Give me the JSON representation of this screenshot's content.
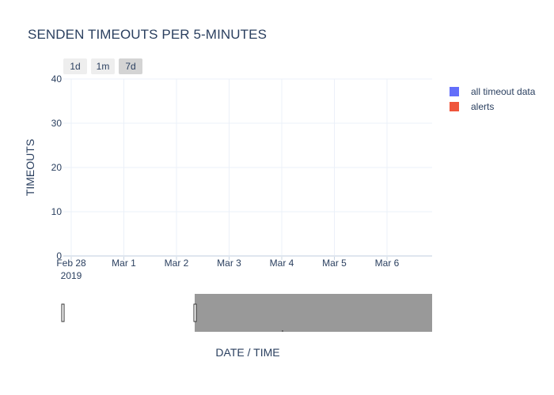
{
  "colors": {
    "series_1": "#636efa",
    "series_2": "#ef553b",
    "grid": "#ebf0f8",
    "range_fill": "#999999"
  },
  "range_buttons": [
    {
      "label": "1d",
      "active": false
    },
    {
      "label": "1m",
      "active": false
    },
    {
      "label": "7d",
      "active": true
    }
  ],
  "chart_data": {
    "type": "line",
    "title": "SENDEN TIMEOUTS PER 5-MINUTES",
    "xlabel": "DATE / TIME",
    "ylabel": "TIMEOUTS",
    "ylim": [
      0,
      40
    ],
    "y_ticks": [
      0,
      10,
      20,
      30,
      40
    ],
    "x_ticks": [
      {
        "label": "Feb 28",
        "sublabel": "2019"
      },
      {
        "label": "Mar 1",
        "sublabel": ""
      },
      {
        "label": "Mar 2",
        "sublabel": ""
      },
      {
        "label": "Mar 3",
        "sublabel": ""
      },
      {
        "label": "Mar 4",
        "sublabel": ""
      },
      {
        "label": "Mar 5",
        "sublabel": ""
      },
      {
        "label": "Mar 6",
        "sublabel": ""
      }
    ],
    "grid": true,
    "legend_position": "top-right",
    "series": [
      {
        "name": "all timeout data",
        "values": []
      },
      {
        "name": "alerts",
        "values": []
      }
    ],
    "range_slider": true
  }
}
